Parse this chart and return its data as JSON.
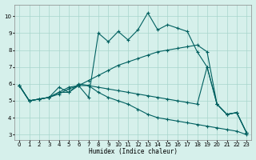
{
  "xlabel": "Humidex (Indice chaleur)",
  "xlim": [
    -0.5,
    23.5
  ],
  "ylim": [
    2.7,
    10.7
  ],
  "yticks": [
    3,
    4,
    5,
    6,
    7,
    8,
    9,
    10
  ],
  "xticks": [
    0,
    1,
    2,
    3,
    4,
    5,
    6,
    7,
    8,
    9,
    10,
    11,
    12,
    13,
    14,
    15,
    16,
    17,
    18,
    19,
    20,
    21,
    22,
    23
  ],
  "bg_color": "#d6f0eb",
  "grid_color": "#a8d5cc",
  "line_color": "#006060",
  "lines": [
    [
      5.9,
      5.0,
      5.1,
      5.2,
      5.5,
      5.8,
      5.9,
      5.2,
      9.0,
      8.5,
      9.1,
      8.6,
      9.2,
      10.2,
      9.2,
      9.5,
      9.3,
      9.1,
      7.9,
      7.0,
      4.8,
      4.2,
      4.3,
      3.1
    ],
    [
      5.9,
      5.0,
      5.1,
      5.2,
      5.4,
      5.7,
      5.9,
      6.2,
      6.5,
      6.8,
      7.1,
      7.3,
      7.5,
      7.7,
      7.9,
      8.0,
      8.1,
      8.2,
      8.3,
      7.9,
      4.8,
      4.2,
      4.3,
      3.1
    ],
    [
      5.9,
      5.0,
      5.1,
      5.2,
      5.8,
      5.5,
      6.0,
      5.9,
      5.8,
      5.7,
      5.6,
      5.5,
      5.4,
      5.3,
      5.2,
      5.1,
      5.0,
      4.9,
      4.8,
      7.0,
      4.8,
      4.2,
      4.3,
      3.1
    ],
    [
      5.9,
      5.0,
      5.1,
      5.2,
      5.5,
      5.5,
      5.9,
      5.9,
      5.5,
      5.2,
      5.0,
      4.8,
      4.5,
      4.2,
      4.0,
      3.9,
      3.8,
      3.7,
      3.6,
      3.5,
      3.4,
      3.3,
      3.2,
      3.0
    ]
  ]
}
